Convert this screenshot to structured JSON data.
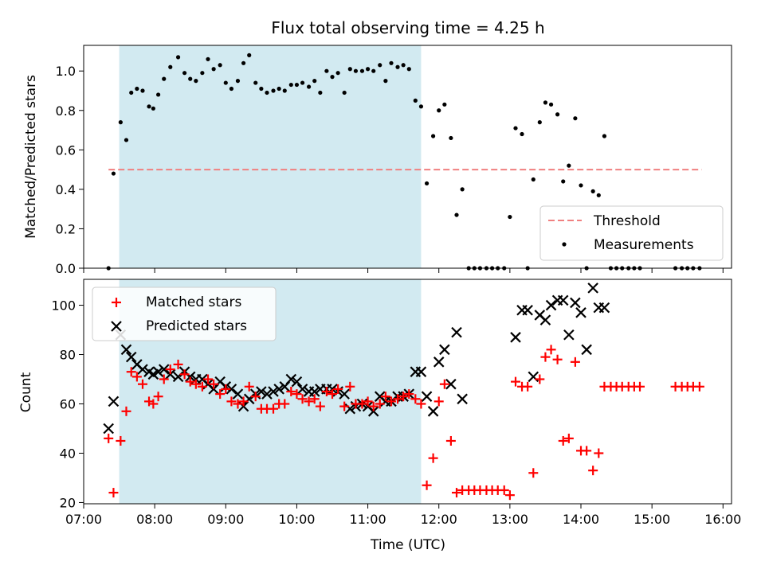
{
  "chart_data": {
    "title": "Flux total observing time = 4.25 h",
    "xlabel": "Time (UTC)",
    "xlim": [
      7.0,
      16.12
    ],
    "xticks": [
      7,
      8,
      9,
      10,
      11,
      12,
      13,
      14,
      15,
      16
    ],
    "xtick_labels": [
      "07:00",
      "08:00",
      "09:00",
      "10:00",
      "11:00",
      "12:00",
      "13:00",
      "14:00",
      "15:00",
      "16:00"
    ],
    "shaded_span": {
      "x": [
        7.5,
        11.75
      ],
      "color": "#add8e6"
    },
    "panels": [
      {
        "type": "scatter",
        "ylabel": "Matched/Predicted stars",
        "ylim": [
          0.0,
          1.13
        ],
        "yticks": [
          0.0,
          0.2,
          0.4,
          0.6,
          0.8,
          1.0
        ],
        "ytick_labels": [
          "0.0",
          "0.2",
          "0.4",
          "0.6",
          "0.8",
          "1.0"
        ],
        "legend": {
          "placement": "lower-right",
          "entries": [
            "Threshold",
            "Measurements"
          ]
        },
        "threshold": {
          "name": "Threshold",
          "y": 0.5,
          "x": [
            7.35,
            15.7
          ],
          "color": "#f08080",
          "style": "dashed"
        },
        "series": [
          {
            "name": "Measurements",
            "marker": "dot",
            "color": "#000000",
            "x": [
              7.35,
              7.42,
              7.52,
              7.6,
              7.67,
              7.75,
              7.83,
              7.92,
              7.98,
              8.05,
              8.13,
              8.22,
              8.33,
              8.42,
              8.5,
              8.58,
              8.67,
              8.75,
              8.83,
              8.92,
              9.0,
              9.08,
              9.17,
              9.25,
              9.33,
              9.42,
              9.5,
              9.58,
              9.67,
              9.75,
              9.83,
              9.92,
              10.0,
              10.08,
              10.17,
              10.25,
              10.33,
              10.42,
              10.5,
              10.58,
              10.67,
              10.75,
              10.83,
              10.92,
              11.0,
              11.08,
              11.17,
              11.25,
              11.33,
              11.42,
              11.5,
              11.58,
              11.67,
              11.75,
              11.83,
              11.92,
              12.0,
              12.08,
              12.17,
              12.25,
              12.33,
              12.42,
              12.5,
              12.58,
              12.67,
              12.75,
              12.83,
              12.92,
              13.0,
              13.08,
              13.17,
              13.25,
              13.33,
              13.42,
              13.5,
              13.58,
              13.67,
              13.75,
              13.83,
              13.92,
              14.0,
              14.08,
              14.17,
              14.25,
              14.33,
              14.42,
              14.5,
              14.58,
              14.67,
              14.75,
              14.83,
              15.33,
              15.42,
              15.5,
              15.58,
              15.67
            ],
            "y": [
              0.0,
              0.48,
              0.74,
              0.65,
              0.89,
              0.91,
              0.9,
              0.82,
              0.81,
              0.88,
              0.96,
              1.02,
              1.07,
              0.99,
              0.96,
              0.95,
              0.99,
              1.06,
              1.01,
              1.03,
              0.94,
              0.91,
              0.95,
              1.04,
              1.08,
              0.94,
              0.91,
              0.89,
              0.9,
              0.91,
              0.9,
              0.93,
              0.93,
              0.94,
              0.92,
              0.95,
              0.89,
              1.0,
              0.97,
              0.99,
              0.89,
              1.01,
              1.0,
              1.0,
              1.01,
              1.0,
              1.03,
              0.95,
              1.04,
              1.02,
              1.03,
              1.01,
              0.85,
              0.82,
              0.43,
              0.67,
              0.8,
              0.83,
              0.66,
              0.27,
              0.4,
              0.0,
              0.0,
              0.0,
              0.0,
              0.0,
              0.0,
              0.0,
              0.26,
              0.71,
              0.68,
              0.0,
              0.45,
              0.74,
              0.84,
              0.83,
              0.78,
              0.44,
              0.52,
              0.76,
              0.42,
              0.0,
              0.39,
              0.37,
              0.67,
              0.0,
              0.0,
              0.0,
              0.0,
              0.0,
              0.0,
              0.0,
              0.0,
              0.0,
              0.0,
              0.0
            ]
          }
        ]
      },
      {
        "type": "scatter",
        "ylabel": "Count",
        "ylim": [
          19.5,
          110.5
        ],
        "yticks": [
          20,
          40,
          60,
          80,
          100
        ],
        "ytick_labels": [
          "20",
          "40",
          "60",
          "80",
          "100"
        ],
        "legend": {
          "placement": "upper-left",
          "entries": [
            "Matched stars",
            "Predicted stars"
          ]
        },
        "series": [
          {
            "name": "Matched stars",
            "marker": "plus",
            "color": "#ff0000",
            "x": [
              7.35,
              7.42,
              7.52,
              7.6,
              7.67,
              7.75,
              7.83,
              7.92,
              7.98,
              8.05,
              8.13,
              8.22,
              8.33,
              8.42,
              8.5,
              8.58,
              8.67,
              8.75,
              8.83,
              8.92,
              9.0,
              9.08,
              9.17,
              9.25,
              9.33,
              9.42,
              9.5,
              9.58,
              9.67,
              9.75,
              9.83,
              9.92,
              10.0,
              10.08,
              10.17,
              10.25,
              10.33,
              10.42,
              10.5,
              10.58,
              10.67,
              10.75,
              10.83,
              10.92,
              11.0,
              11.08,
              11.17,
              11.25,
              11.33,
              11.42,
              11.5,
              11.58,
              11.67,
              11.75,
              11.83,
              11.92,
              12.0,
              12.08,
              12.17,
              12.25,
              12.33,
              12.42,
              12.5,
              12.58,
              12.67,
              12.75,
              12.83,
              12.92,
              13.0,
              13.08,
              13.17,
              13.25,
              13.33,
              13.42,
              13.5,
              13.58,
              13.67,
              13.75,
              13.83,
              13.92,
              14.0,
              14.08,
              14.17,
              14.25,
              14.33,
              14.42,
              14.5,
              14.58,
              14.67,
              14.75,
              14.83,
              15.33,
              15.42,
              15.5,
              15.58,
              15.67
            ],
            "y": [
              46,
              24,
              45,
              57,
              73,
              71,
              68,
              61,
              60,
              63,
              70,
              74,
              76,
              72,
              69,
              68,
              67,
              70,
              68,
              64,
              66,
              61,
              60,
              61,
              67,
              63,
              58,
              58,
              58,
              60,
              60,
              65,
              64,
              62,
              61,
              62,
              59,
              65,
              64,
              66,
              59,
              67,
              60,
              60,
              61,
              59,
              60,
              63,
              61,
              62,
              63,
              64,
              62,
              60,
              27,
              38,
              61,
              68,
              45,
              24,
              25,
              25,
              25,
              25,
              25,
              25,
              25,
              25,
              23,
              69,
              67,
              67,
              32,
              70,
              79,
              82,
              78,
              45,
              46,
              77,
              41,
              41,
              33,
              40,
              67,
              67,
              67,
              67,
              67,
              67,
              67,
              67,
              67,
              67,
              67,
              67
            ]
          },
          {
            "name": "Predicted stars",
            "marker": "x",
            "color": "#000000",
            "x": [
              7.35,
              7.42,
              7.52,
              7.6,
              7.67,
              7.75,
              7.83,
              7.92,
              7.98,
              8.05,
              8.13,
              8.22,
              8.33,
              8.42,
              8.5,
              8.58,
              8.67,
              8.75,
              8.83,
              8.92,
              9.0,
              9.08,
              9.17,
              9.25,
              9.33,
              9.42,
              9.5,
              9.58,
              9.67,
              9.75,
              9.83,
              9.92,
              10.0,
              10.08,
              10.17,
              10.25,
              10.33,
              10.42,
              10.5,
              10.58,
              10.67,
              10.75,
              10.83,
              10.92,
              11.0,
              11.08,
              11.17,
              11.25,
              11.33,
              11.42,
              11.5,
              11.58,
              11.67,
              11.75,
              11.83,
              11.92,
              12.0,
              12.08,
              12.17,
              12.25,
              12.33,
              13.08,
              13.17,
              13.25,
              13.33,
              13.42,
              13.5,
              13.58,
              13.67,
              13.75,
              13.83,
              13.92,
              14.0,
              14.08,
              14.17,
              14.25,
              14.33
            ],
            "y": [
              50,
              61,
              88,
              82,
              79,
              76,
              74,
              73,
              72,
              73,
              74,
              72,
              71,
              73,
              71,
              70,
              70,
              68,
              66,
              69,
              67,
              66,
              64,
              59,
              62,
              64,
              65,
              64,
              65,
              66,
              67,
              70,
              69,
              66,
              65,
              65,
              66,
              66,
              66,
              65,
              64,
              58,
              59,
              60,
              59,
              57,
              63,
              61,
              61,
              63,
              63,
              64,
              73,
              73,
              63,
              57,
              77,
              82,
              68,
              89,
              62,
              87,
              98,
              98,
              71,
              96,
              94,
              100,
              102,
              102,
              88,
              101,
              97,
              82,
              107,
              99,
              99
            ]
          }
        ]
      }
    ]
  }
}
